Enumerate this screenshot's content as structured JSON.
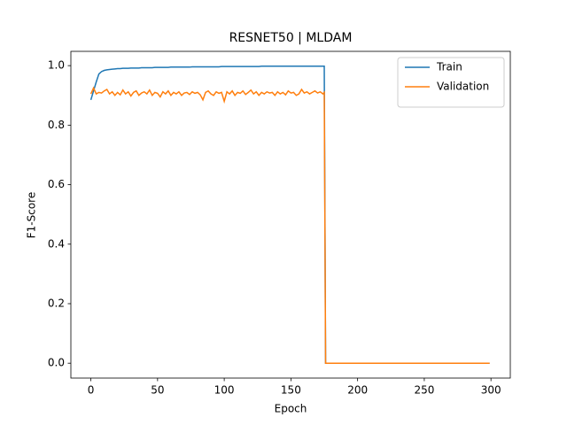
{
  "chart_data": {
    "type": "line",
    "title": "RESNET50 | MLDAM",
    "x_label": "Epoch",
    "y_label": "F1-Score",
    "x": [
      0,
      2,
      4,
      6,
      8,
      10,
      12,
      14,
      16,
      18,
      20,
      22,
      24,
      26,
      28,
      30,
      32,
      34,
      36,
      38,
      40,
      42,
      44,
      46,
      48,
      50,
      52,
      54,
      56,
      58,
      60,
      62,
      64,
      66,
      68,
      70,
      72,
      74,
      76,
      78,
      80,
      82,
      84,
      86,
      88,
      90,
      92,
      94,
      96,
      98,
      100,
      102,
      104,
      106,
      108,
      110,
      112,
      114,
      116,
      118,
      120,
      122,
      124,
      126,
      128,
      130,
      132,
      134,
      136,
      138,
      140,
      142,
      144,
      146,
      148,
      150,
      152,
      154,
      156,
      158,
      160,
      162,
      164,
      166,
      168,
      170,
      172,
      174,
      175,
      176,
      299
    ],
    "series": [
      {
        "name": "Train",
        "color": "#1f77b4",
        "values": [
          0.885,
          0.915,
          0.945,
          0.972,
          0.98,
          0.984,
          0.986,
          0.987,
          0.988,
          0.989,
          0.99,
          0.99,
          0.991,
          0.991,
          0.991,
          0.992,
          0.992,
          0.992,
          0.992,
          0.993,
          0.993,
          0.993,
          0.993,
          0.993,
          0.994,
          0.994,
          0.994,
          0.994,
          0.994,
          0.994,
          0.995,
          0.995,
          0.995,
          0.995,
          0.995,
          0.995,
          0.995,
          0.995,
          0.996,
          0.996,
          0.996,
          0.996,
          0.996,
          0.996,
          0.996,
          0.996,
          0.996,
          0.996,
          0.996,
          0.997,
          0.997,
          0.997,
          0.997,
          0.997,
          0.997,
          0.997,
          0.997,
          0.997,
          0.997,
          0.997,
          0.997,
          0.997,
          0.997,
          0.997,
          0.998,
          0.998,
          0.998,
          0.998,
          0.998,
          0.998,
          0.998,
          0.998,
          0.998,
          0.998,
          0.998,
          0.998,
          0.998,
          0.998,
          0.998,
          0.998,
          0.998,
          0.998,
          0.998,
          0.998,
          0.998,
          0.998,
          0.998,
          0.998,
          0.998,
          0,
          0
        ]
      },
      {
        "name": "Validation",
        "color": "#ff7f0e",
        "values": [
          0.905,
          0.925,
          0.905,
          0.91,
          0.908,
          0.915,
          0.92,
          0.905,
          0.912,
          0.9,
          0.91,
          0.902,
          0.918,
          0.905,
          0.912,
          0.898,
          0.91,
          0.915,
          0.9,
          0.908,
          0.912,
          0.905,
          0.918,
          0.9,
          0.91,
          0.907,
          0.895,
          0.912,
          0.905,
          0.915,
          0.9,
          0.91,
          0.905,
          0.912,
          0.9,
          0.908,
          0.91,
          0.903,
          0.912,
          0.907,
          0.91,
          0.902,
          0.885,
          0.91,
          0.915,
          0.905,
          0.9,
          0.912,
          0.907,
          0.91,
          0.88,
          0.912,
          0.905,
          0.915,
          0.9,
          0.91,
          0.907,
          0.915,
          0.903,
          0.91,
          0.918,
          0.905,
          0.912,
          0.9,
          0.91,
          0.905,
          0.912,
          0.908,
          0.91,
          0.9,
          0.912,
          0.905,
          0.91,
          0.902,
          0.915,
          0.908,
          0.91,
          0.9,
          0.905,
          0.92,
          0.908,
          0.912,
          0.905,
          0.91,
          0.915,
          0.908,
          0.912,
          0.905,
          0.91,
          0,
          0
        ]
      }
    ],
    "xlim": [
      -15,
      314.5
    ],
    "ylim": [
      -0.05,
      1.048
    ],
    "xticks": [
      0,
      50,
      100,
      150,
      200,
      250,
      300
    ],
    "yticks": [
      {
        "value": 0,
        "label": "0.0"
      },
      {
        "value": 0.2,
        "label": "0.2"
      },
      {
        "value": 0.4,
        "label": "0.4"
      },
      {
        "value": 0.6,
        "label": "0.6"
      },
      {
        "value": 0.8,
        "label": "0.8"
      },
      {
        "value": 1,
        "label": "1.0"
      }
    ],
    "legend": "upper right"
  }
}
